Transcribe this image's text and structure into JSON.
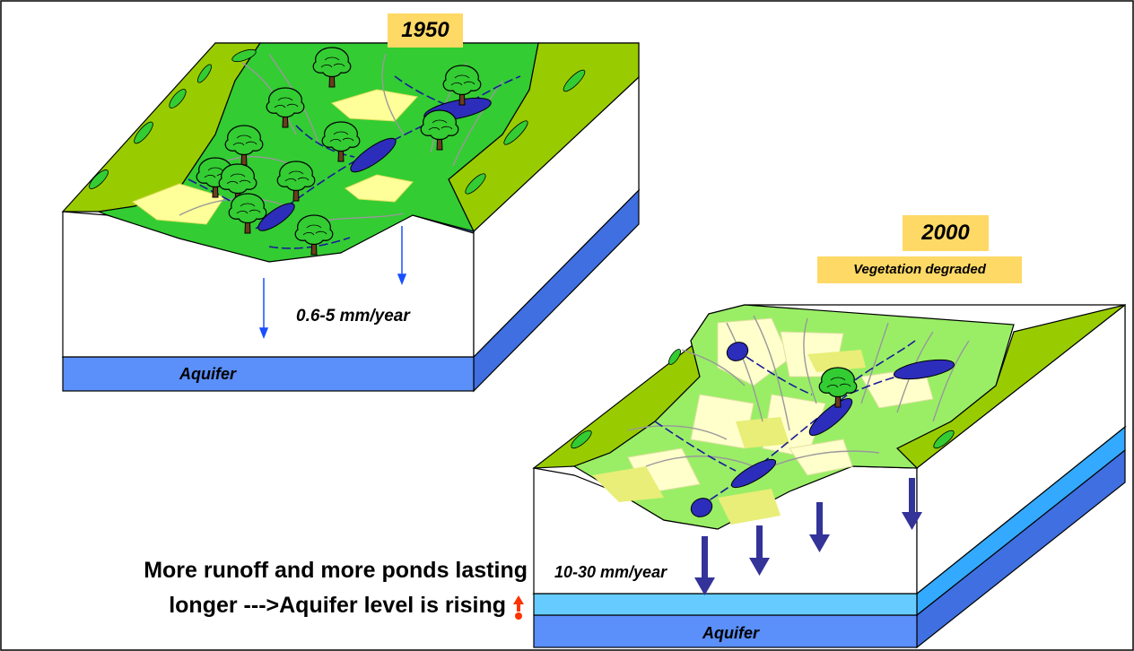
{
  "labels": {
    "year_1950": "1950",
    "year_2000": "2000",
    "vegetation_note": "Vegetation degraded",
    "infiltration_1950": "0.6-5 mm/year",
    "infiltration_2000": "10-30 mm/year",
    "aquifer_1950": "Aquifer",
    "aquifer_2000": "Aquifer"
  },
  "conclusion": {
    "line1": "More runoff and more ponds lasting",
    "line2": "longer --->Aquifer level is rising"
  },
  "icons": {
    "rising_indicator": "red-up-arrow-icon",
    "recharge_arrow": "blue-down-arrow-icon",
    "tree": "tree-icon",
    "pond": "pond-icon"
  },
  "colors": {
    "highlight": "#ffd966",
    "aquifer_1950": "#5b8ff9",
    "aquifer_2000": "#66ccff",
    "grass": "#33cc33",
    "bank": "#99cc00",
    "pond": "#2d2dbb",
    "field": "#ffff99",
    "rise_arrow": "#ff3300"
  }
}
